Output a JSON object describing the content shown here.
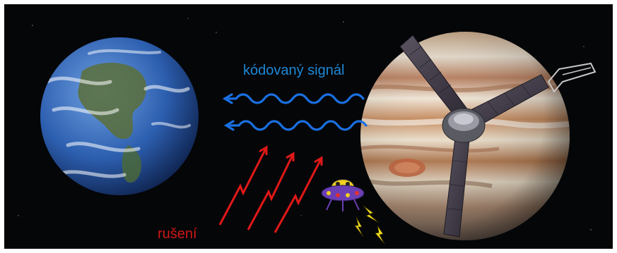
{
  "labels": {
    "signal": "kódovaný signál",
    "noise": "rušení"
  },
  "colors": {
    "background": "#050608",
    "signal": "#1a6fe0",
    "signal_label": "#1e88d6",
    "noise": "#e01818",
    "noise_label": "#d01818",
    "earth_ocean": "#2d5fb0",
    "jupiter_band_light": "#e8dccb",
    "jupiter_band_dark": "#b58058",
    "ufo_body": "#6a3fb5",
    "ufo_dome": "#f0d020",
    "lightning": "#f5e020",
    "panel": "#4a4250"
  },
  "objects": {
    "earth": "earth",
    "jupiter": "jupiter",
    "spacecraft": "juno-spacecraft",
    "alien": "ufo-alien"
  }
}
